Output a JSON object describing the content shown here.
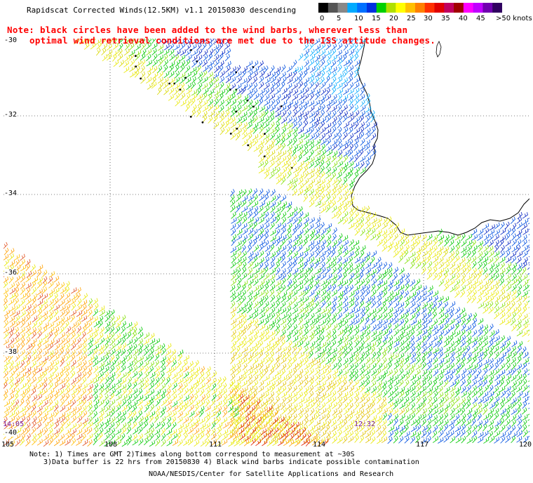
{
  "title": "Rapidscat Corrected Winds(12.5KM) v1.1 20150830 descending",
  "note_line1": "Note: black circles have been added to the wind barbs, wherever less than",
  "note_line2": "optimal wind retrieval conditions are met due to the ISS attitude changes.",
  "legend": {
    "labels": [
      "0",
      "5",
      "10",
      "15",
      "20",
      "25",
      "30",
      "35",
      "40",
      "45",
      ">50 knots"
    ],
    "colors": [
      "#000000",
      "#555555",
      "#888888",
      "#00aaff",
      "#0070ff",
      "#0030e0",
      "#00d000",
      "#b0e000",
      "#ffff00",
      "#ffc000",
      "#ff8000",
      "#ff3000",
      "#e00000",
      "#c00060",
      "#a00000",
      "#ff00ff",
      "#c000ff",
      "#7000b0",
      "#300060"
    ]
  },
  "lat_labels": [
    "-30",
    "-32",
    "-34",
    "-36",
    "-38",
    "-40"
  ],
  "lon_labels": [
    "105",
    "108",
    "111",
    "114",
    "117",
    "120"
  ],
  "times": [
    "14:05",
    "12:32"
  ],
  "footnote_line1": "Note: 1) Times are GMT 2)Times along bottom correspond to measurement at ~30S",
  "footnote_line2": "3)Data buffer is 22 hrs from 20150830 4) Black wind barbs indicate possible contamination",
  "credit": "NOAA/NESDIS/Center for Satellite Applications and Research"
}
